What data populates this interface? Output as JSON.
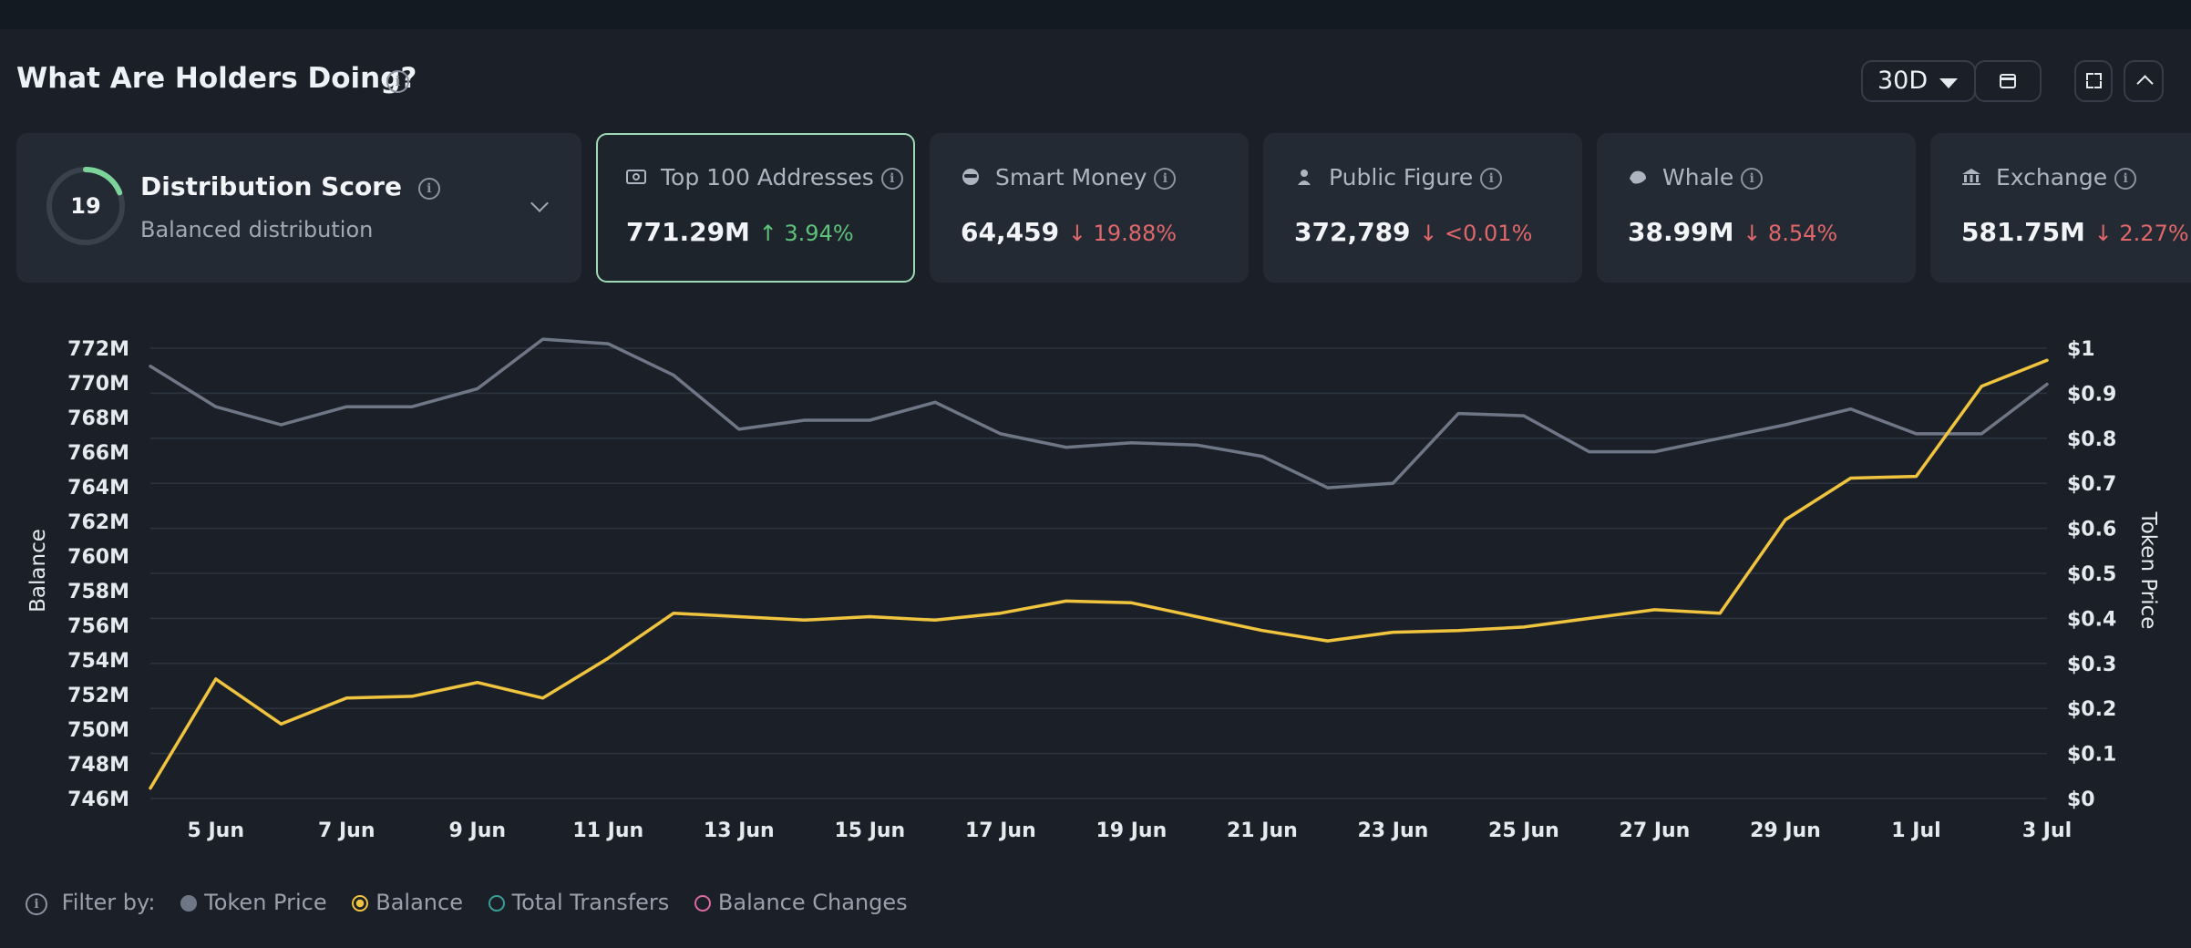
{
  "header": {
    "title": "What Are Holders Doing?",
    "period": "30D"
  },
  "colors": {
    "positive": "#5ec27b",
    "negative": "#e0676a",
    "balance_line": "#f0c43f",
    "price_line": "#6f7787",
    "selected_border": "#9fd8b6",
    "transfers_ring": "#3a9d95",
    "changes_ring": "#d96aa2"
  },
  "distribution": {
    "score": "19",
    "title": "Distribution Score",
    "subtitle": "Balanced distribution",
    "score_fraction": 0.19
  },
  "cards": [
    {
      "label": "Top 100 Addresses",
      "value": "771.29M",
      "change": "↑ 3.94%",
      "direction": "up",
      "icon": "money-icon"
    },
    {
      "label": "Smart Money",
      "value": "64,459",
      "change": "↓ 19.88%",
      "direction": "down",
      "icon": "sunglasses-icon"
    },
    {
      "label": "Public Figure",
      "value": "372,789",
      "change": "↓ <0.01%",
      "direction": "down",
      "icon": "figure-icon"
    },
    {
      "label": "Whale",
      "value": "38.99M",
      "change": "↓ 8.54%",
      "direction": "down",
      "icon": "whale-icon"
    },
    {
      "label": "Exchange",
      "value": "581.75M",
      "change": "↓ 2.27%",
      "direction": "down",
      "icon": "bank-icon"
    }
  ],
  "legend": {
    "prefix": "Filter by:",
    "items": [
      "Token Price",
      "Balance",
      "Total Transfers",
      "Balance Changes"
    ]
  },
  "chart_data": {
    "type": "line",
    "x": [
      "4 Jun",
      "5 Jun",
      "6 Jun",
      "7 Jun",
      "8 Jun",
      "9 Jun",
      "10 Jun",
      "11 Jun",
      "12 Jun",
      "13 Jun",
      "14 Jun",
      "15 Jun",
      "16 Jun",
      "17 Jun",
      "18 Jun",
      "19 Jun",
      "20 Jun",
      "21 Jun",
      "22 Jun",
      "23 Jun",
      "24 Jun",
      "25 Jun",
      "26 Jun",
      "27 Jun",
      "28 Jun",
      "29 Jun",
      "30 Jun",
      "1 Jul",
      "2 Jul",
      "3 Jul"
    ],
    "x_tick_labels": [
      "5 Jun",
      "7 Jun",
      "9 Jun",
      "11 Jun",
      "13 Jun",
      "15 Jun",
      "17 Jun",
      "19 Jun",
      "21 Jun",
      "23 Jun",
      "25 Jun",
      "27 Jun",
      "29 Jun",
      "1 Jul",
      "3 Jul"
    ],
    "ylabel": "Balance",
    "y2label": "Token Price",
    "ylim": [
      746,
      772
    ],
    "y_tick_labels": [
      "772M",
      "770M",
      "768M",
      "766M",
      "764M",
      "762M",
      "760M",
      "758M",
      "756M",
      "754M",
      "752M",
      "750M",
      "748M",
      "746M"
    ],
    "y_ticks": [
      772,
      770,
      768,
      766,
      764,
      762,
      760,
      758,
      756,
      754,
      752,
      750,
      748,
      746
    ],
    "y2lim": [
      0,
      1
    ],
    "y2_tick_labels": [
      "$1",
      "$0.9",
      "$0.8",
      "$0.7",
      "$0.6",
      "$0.5",
      "$0.4",
      "$0.3",
      "$0.2",
      "$0.1",
      "$0"
    ],
    "y2_ticks": [
      1,
      0.9,
      0.8,
      0.7,
      0.6,
      0.5,
      0.4,
      0.3,
      0.2,
      0.1,
      0
    ],
    "grid": true,
    "series": [
      {
        "name": "Token Price",
        "axis": "right",
        "values": [
          0.96,
          0.87,
          0.83,
          0.87,
          0.87,
          0.91,
          1.02,
          1.01,
          0.94,
          0.82,
          0.84,
          0.84,
          0.88,
          0.81,
          0.78,
          0.79,
          0.785,
          0.76,
          0.69,
          0.7,
          0.855,
          0.85,
          0.77,
          0.77,
          0.8,
          0.83,
          0.865,
          0.81,
          0.81,
          0.92
        ]
      },
      {
        "name": "Balance",
        "axis": "left",
        "values": [
          746.6,
          752.9,
          750.3,
          751.8,
          751.9,
          752.7,
          751.8,
          754.1,
          756.7,
          756.5,
          756.3,
          756.5,
          756.3,
          756.7,
          757.4,
          757.3,
          756.5,
          755.7,
          755.1,
          755.6,
          755.7,
          755.9,
          756.4,
          756.9,
          756.7,
          762.1,
          764.5,
          764.6,
          769.8,
          771.3
        ]
      }
    ]
  }
}
